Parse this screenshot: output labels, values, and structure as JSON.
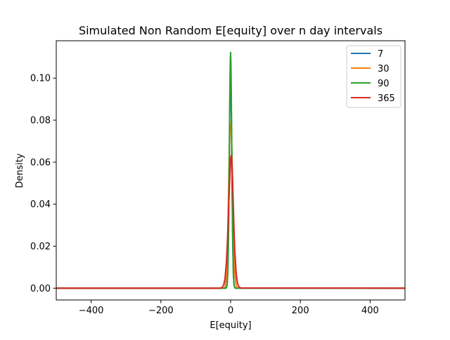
{
  "chart_data": {
    "type": "line",
    "title": "Simulated Non Random E[equity] over n day intervals",
    "xlabel": "E[equity]",
    "ylabel": "Density",
    "xlim": [
      -500,
      500
    ],
    "ylim": [
      -0.0056,
      0.1178
    ],
    "xticks": [
      -400,
      -200,
      0,
      200,
      400
    ],
    "xtick_labels": [
      "−400",
      "−200",
      "0",
      "200",
      "400"
    ],
    "yticks": [
      0.0,
      0.02,
      0.04,
      0.06,
      0.08,
      0.1
    ],
    "ytick_labels": [
      "0.00",
      "0.02",
      "0.04",
      "0.06",
      "0.08",
      "0.10"
    ],
    "grid": false,
    "legend_position": "upper right",
    "series": [
      {
        "name": "7",
        "color": "#1f77b4",
        "x": [
          -500,
          -14,
          -12,
          -10,
          -8,
          -6,
          -4,
          -3,
          -2,
          -1,
          0,
          1,
          2,
          3,
          4,
          6,
          8,
          10,
          12,
          14,
          500
        ],
        "y": [
          0,
          0,
          0.0003,
          0.0019,
          0.0086,
          0.0271,
          0.0585,
          0.0769,
          0.0926,
          0.1018,
          0.1035,
          0.0972,
          0.0839,
          0.0667,
          0.0488,
          0.0208,
          0.0063,
          0.0013,
          0.0002,
          0,
          0
        ]
      },
      {
        "name": "30",
        "color": "#ff7f0e",
        "x": [
          -500,
          -20,
          -16,
          -12,
          -10,
          -8,
          -6,
          -4,
          -2,
          0,
          2,
          4,
          6,
          8,
          10,
          12,
          16,
          20,
          500
        ],
        "y": [
          0,
          0,
          0.0005,
          0.0055,
          0.0135,
          0.0275,
          0.0465,
          0.0648,
          0.0755,
          0.0785,
          0.0745,
          0.0635,
          0.047,
          0.0295,
          0.0158,
          0.0072,
          0.001,
          0.0001,
          0
        ]
      },
      {
        "name": "90",
        "color": "#2ca02c",
        "x": [
          -500,
          -14,
          -12,
          -10,
          -8,
          -6,
          -4,
          -3,
          -2,
          -1,
          0,
          1,
          2,
          3,
          4,
          6,
          8,
          10,
          12,
          14,
          500
        ],
        "y": [
          0,
          0,
          0.0002,
          0.0015,
          0.0075,
          0.0255,
          0.0585,
          0.0795,
          0.0965,
          0.1085,
          0.1122,
          0.1062,
          0.0922,
          0.0742,
          0.0545,
          0.0232,
          0.0068,
          0.0014,
          0.0002,
          0,
          0
        ]
      },
      {
        "name": "365",
        "color": "#d62728",
        "x": [
          -500,
          -30,
          -24,
          -20,
          -16,
          -12,
          -10,
          -8,
          -6,
          -4,
          -2,
          0,
          2,
          4,
          6,
          8,
          10,
          12,
          16,
          20,
          24,
          30,
          500
        ],
        "y": [
          0,
          0,
          0.0004,
          0.0015,
          0.0048,
          0.0128,
          0.0192,
          0.0272,
          0.0362,
          0.0455,
          0.0545,
          0.0618,
          0.0632,
          0.0585,
          0.0492,
          0.0378,
          0.0268,
          0.0178,
          0.0068,
          0.0022,
          0.0006,
          0.0001,
          0
        ]
      }
    ]
  }
}
